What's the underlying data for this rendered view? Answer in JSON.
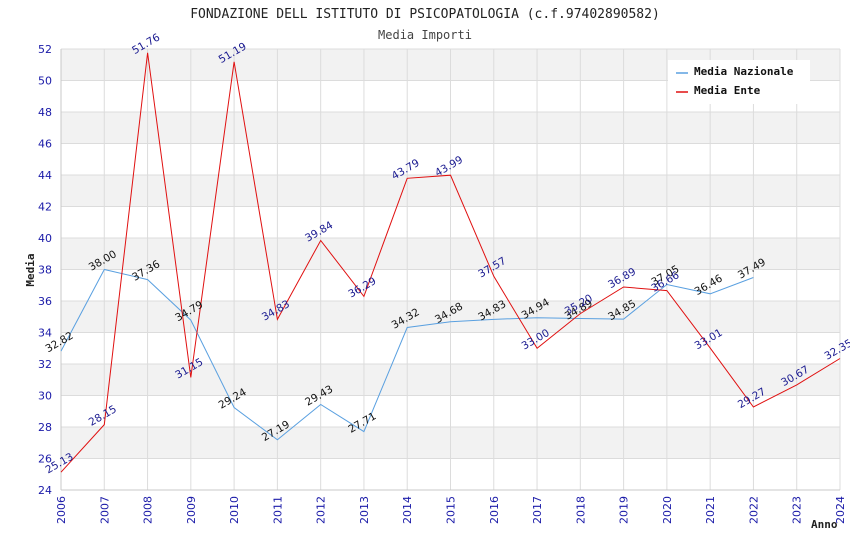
{
  "chart_data": {
    "type": "line",
    "title": "FONDAZIONE DELL ISTITUTO DI PSICOPATOLOGIA (c.f.97402890582)",
    "subtitle": "Media Importi",
    "xlabel": "Anno",
    "ylabel": "Media",
    "ylim": [
      24,
      52
    ],
    "yticks": [
      24,
      26,
      28,
      30,
      32,
      34,
      36,
      38,
      40,
      42,
      44,
      46,
      48,
      50,
      52
    ],
    "x": [
      "2006",
      "2007",
      "2008",
      "2009",
      "2010",
      "2011",
      "2012",
      "2013",
      "2014",
      "2015",
      "2016",
      "2017",
      "2018",
      "2019",
      "2020",
      "2021",
      "2022",
      "2023",
      "2024"
    ],
    "grid": true,
    "legend_position": "top-right",
    "series": [
      {
        "name": "Media Nazionale",
        "color": "#5aa0e0",
        "label_color": "#111111",
        "values": [
          32.82,
          38.0,
          37.36,
          34.79,
          29.24,
          27.19,
          29.43,
          27.71,
          34.32,
          34.68,
          34.83,
          34.94,
          34.89,
          34.85,
          37.05,
          36.46,
          37.49,
          null,
          null
        ],
        "labels": [
          "32.82",
          "38.00",
          "37.36",
          "34.79",
          "29.24",
          "27.19",
          "29.43",
          "27.71",
          "34.32",
          "34.68",
          "34.83",
          "34.94",
          "34.89",
          "34.85",
          "37.05",
          "36.46",
          "37.49",
          "",
          ""
        ]
      },
      {
        "name": "Media Ente",
        "color": "#e01010",
        "label_color": "#1a1a90",
        "values": [
          25.13,
          28.15,
          51.76,
          31.15,
          51.19,
          34.83,
          39.84,
          36.29,
          43.79,
          43.99,
          37.57,
          33.0,
          35.2,
          36.89,
          36.66,
          33.01,
          29.27,
          30.67,
          32.35
        ],
        "labels": [
          "25.13",
          "28.15",
          "51.76",
          "31.15",
          "51.19",
          "34.83",
          "39.84",
          "36.29",
          "43.79",
          "43.99",
          "37.57",
          "33.00",
          "35.20",
          "36.89",
          "36.66",
          "33.01",
          "29.27",
          "30.67",
          "32.35"
        ]
      }
    ]
  }
}
